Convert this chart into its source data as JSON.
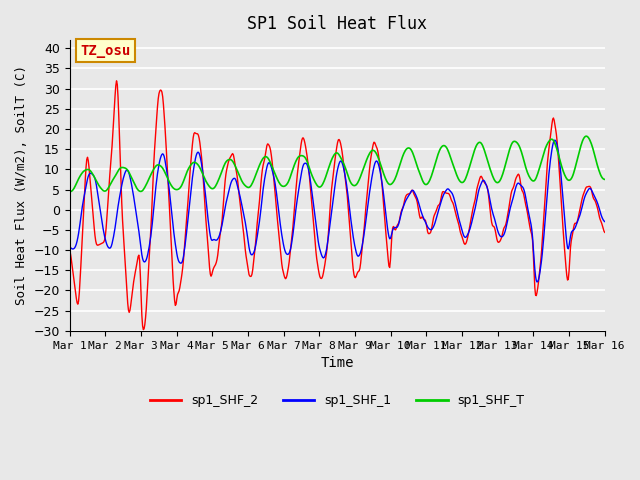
{
  "title": "SP1 Soil Heat Flux",
  "xlabel": "Time",
  "ylabel": "Soil Heat Flux (W/m2), SoilT (C)",
  "ylim": [
    -30,
    42
  ],
  "yticks": [
    -30,
    -25,
    -20,
    -15,
    -10,
    -5,
    0,
    5,
    10,
    15,
    20,
    25,
    30,
    35,
    40
  ],
  "bg_color": "#e8e8e8",
  "plot_bg_color": "#e8e8e8",
  "grid_color": "#ffffff",
  "line_colors": {
    "shf2": "#ff0000",
    "shf1": "#0000ff",
    "shfT": "#00cc00"
  },
  "legend_labels": [
    "sp1_SHF_2",
    "sp1_SHF_1",
    "sp1_SHF_T"
  ],
  "tz_label": "TZ_osu",
  "tz_bg": "#ffffcc",
  "tz_border": "#cc8800",
  "tz_text_color": "#cc0000",
  "n_days": 15,
  "points_per_day": 48
}
